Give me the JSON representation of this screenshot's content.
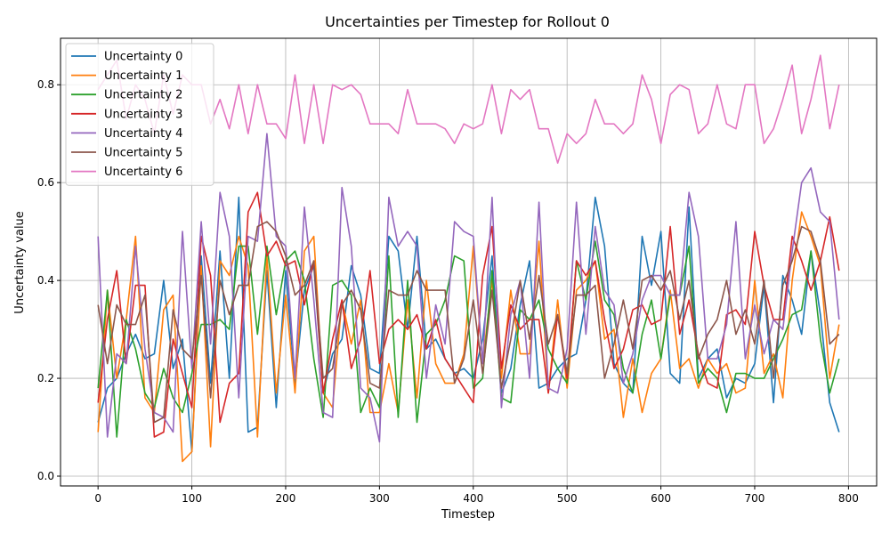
{
  "chart_data": {
    "type": "line",
    "title": "Uncertainties per Timestep for Rollout 0",
    "xlabel": "Timestep",
    "ylabel": "Uncertainty value",
    "xlim": [
      -40,
      830
    ],
    "ylim": [
      -0.02,
      0.895
    ],
    "xticks": [
      0,
      100,
      200,
      300,
      400,
      500,
      600,
      700,
      800
    ],
    "yticks": [
      0.0,
      0.2,
      0.4,
      0.6,
      0.8
    ],
    "xtick_labels": [
      "0",
      "100",
      "200",
      "300",
      "400",
      "500",
      "600",
      "700",
      "800"
    ],
    "ytick_labels": [
      "0.0",
      "0.2",
      "0.4",
      "0.6",
      "0.8"
    ],
    "grid": true,
    "legend_position": "top-left",
    "x": [
      0,
      10,
      20,
      30,
      40,
      50,
      60,
      70,
      80,
      90,
      100,
      110,
      120,
      130,
      140,
      150,
      160,
      170,
      180,
      190,
      200,
      210,
      220,
      230,
      240,
      250,
      260,
      270,
      280,
      290,
      300,
      310,
      320,
      330,
      340,
      350,
      360,
      370,
      380,
      390,
      400,
      410,
      420,
      430,
      440,
      450,
      460,
      470,
      480,
      490,
      500,
      510,
      520,
      530,
      540,
      550,
      560,
      570,
      580,
      590,
      600,
      610,
      620,
      630,
      640,
      650,
      660,
      670,
      680,
      690,
      700,
      710,
      720,
      730,
      740,
      750,
      760,
      770,
      780,
      790
    ],
    "series": [
      {
        "name": "Uncertainty 0",
        "color": "#1f77b4",
        "values": [
          0.11,
          0.18,
          0.2,
          0.25,
          0.29,
          0.24,
          0.25,
          0.4,
          0.22,
          0.28,
          0.05,
          0.45,
          0.19,
          0.46,
          0.2,
          0.57,
          0.09,
          0.1,
          0.42,
          0.14,
          0.42,
          0.19,
          0.38,
          0.43,
          0.17,
          0.25,
          0.28,
          0.43,
          0.37,
          0.22,
          0.21,
          0.49,
          0.46,
          0.3,
          0.49,
          0.26,
          0.28,
          0.24,
          0.21,
          0.22,
          0.2,
          0.28,
          0.45,
          0.17,
          0.22,
          0.35,
          0.44,
          0.18,
          0.19,
          0.22,
          0.24,
          0.25,
          0.36,
          0.57,
          0.47,
          0.23,
          0.19,
          0.17,
          0.49,
          0.39,
          0.5,
          0.21,
          0.19,
          0.55,
          0.2,
          0.24,
          0.26,
          0.16,
          0.2,
          0.19,
          0.23,
          0.39,
          0.15,
          0.41,
          0.36,
          0.29,
          0.46,
          0.33,
          0.15,
          0.09
        ]
      },
      {
        "name": "Uncertainty 1",
        "color": "#ff7f0e",
        "values": [
          0.09,
          0.38,
          0.2,
          0.32,
          0.49,
          0.16,
          0.13,
          0.34,
          0.37,
          0.03,
          0.05,
          0.43,
          0.06,
          0.44,
          0.41,
          0.49,
          0.43,
          0.08,
          0.45,
          0.17,
          0.37,
          0.17,
          0.46,
          0.49,
          0.17,
          0.14,
          0.36,
          0.27,
          0.36,
          0.13,
          0.13,
          0.23,
          0.13,
          0.36,
          0.16,
          0.4,
          0.23,
          0.19,
          0.19,
          0.25,
          0.47,
          0.23,
          0.4,
          0.2,
          0.38,
          0.25,
          0.25,
          0.48,
          0.17,
          0.36,
          0.18,
          0.38,
          0.4,
          0.44,
          0.28,
          0.3,
          0.12,
          0.24,
          0.13,
          0.21,
          0.24,
          0.38,
          0.22,
          0.24,
          0.18,
          0.24,
          0.21,
          0.23,
          0.17,
          0.18,
          0.4,
          0.21,
          0.25,
          0.16,
          0.4,
          0.54,
          0.49,
          0.43,
          0.2,
          0.31
        ]
      },
      {
        "name": "Uncertainty 2",
        "color": "#2ca02c",
        "values": [
          0.18,
          0.38,
          0.08,
          0.32,
          0.26,
          0.17,
          0.14,
          0.22,
          0.16,
          0.13,
          0.21,
          0.31,
          0.31,
          0.32,
          0.3,
          0.47,
          0.47,
          0.29,
          0.47,
          0.33,
          0.44,
          0.46,
          0.4,
          0.24,
          0.12,
          0.39,
          0.4,
          0.37,
          0.13,
          0.18,
          0.14,
          0.45,
          0.12,
          0.4,
          0.11,
          0.29,
          0.31,
          0.36,
          0.45,
          0.44,
          0.18,
          0.2,
          0.42,
          0.16,
          0.15,
          0.34,
          0.32,
          0.36,
          0.26,
          0.22,
          0.19,
          0.44,
          0.36,
          0.48,
          0.36,
          0.33,
          0.22,
          0.17,
          0.29,
          0.36,
          0.24,
          0.37,
          0.37,
          0.47,
          0.19,
          0.22,
          0.2,
          0.13,
          0.21,
          0.21,
          0.2,
          0.2,
          0.24,
          0.28,
          0.33,
          0.34,
          0.46,
          0.28,
          0.17,
          0.24
        ]
      },
      {
        "name": "Uncertainty 3",
        "color": "#d62728",
        "values": [
          0.15,
          0.32,
          0.42,
          0.23,
          0.39,
          0.39,
          0.08,
          0.09,
          0.28,
          0.21,
          0.14,
          0.49,
          0.41,
          0.11,
          0.19,
          0.21,
          0.54,
          0.58,
          0.45,
          0.48,
          0.43,
          0.44,
          0.35,
          0.44,
          0.17,
          0.28,
          0.36,
          0.22,
          0.28,
          0.42,
          0.23,
          0.3,
          0.32,
          0.3,
          0.33,
          0.26,
          0.32,
          0.24,
          0.21,
          0.18,
          0.15,
          0.41,
          0.51,
          0.22,
          0.35,
          0.3,
          0.32,
          0.32,
          0.17,
          0.33,
          0.2,
          0.44,
          0.41,
          0.44,
          0.32,
          0.22,
          0.26,
          0.34,
          0.35,
          0.31,
          0.32,
          0.51,
          0.29,
          0.36,
          0.25,
          0.19,
          0.18,
          0.33,
          0.34,
          0.31,
          0.5,
          0.39,
          0.32,
          0.32,
          0.49,
          0.44,
          0.38,
          0.44,
          0.53,
          0.42
        ]
      },
      {
        "name": "Uncertainty 4",
        "color": "#9467bd",
        "values": [
          0.49,
          0.08,
          0.25,
          0.23,
          0.47,
          0.26,
          0.13,
          0.12,
          0.09,
          0.5,
          0.22,
          0.52,
          0.27,
          0.58,
          0.49,
          0.16,
          0.49,
          0.48,
          0.7,
          0.49,
          0.47,
          0.2,
          0.55,
          0.36,
          0.13,
          0.12,
          0.59,
          0.47,
          0.18,
          0.16,
          0.07,
          0.57,
          0.47,
          0.5,
          0.47,
          0.2,
          0.35,
          0.27,
          0.52,
          0.5,
          0.49,
          0.23,
          0.57,
          0.14,
          0.33,
          0.4,
          0.2,
          0.56,
          0.18,
          0.17,
          0.26,
          0.56,
          0.29,
          0.51,
          0.38,
          0.35,
          0.19,
          0.25,
          0.36,
          0.41,
          0.41,
          0.37,
          0.37,
          0.58,
          0.49,
          0.24,
          0.24,
          0.31,
          0.52,
          0.24,
          0.35,
          0.25,
          0.32,
          0.3,
          0.46,
          0.6,
          0.63,
          0.54,
          0.52,
          0.32
        ]
      },
      {
        "name": "Uncertainty 5",
        "color": "#8c564b",
        "values": [
          0.35,
          0.23,
          0.35,
          0.31,
          0.31,
          0.37,
          0.11,
          0.12,
          0.34,
          0.26,
          0.24,
          0.41,
          0.16,
          0.4,
          0.33,
          0.39,
          0.39,
          0.51,
          0.52,
          0.5,
          0.45,
          0.37,
          0.39,
          0.44,
          0.2,
          0.22,
          0.35,
          0.38,
          0.34,
          0.19,
          0.18,
          0.38,
          0.37,
          0.37,
          0.42,
          0.38,
          0.38,
          0.38,
          0.19,
          0.24,
          0.36,
          0.21,
          0.38,
          0.18,
          0.28,
          0.4,
          0.28,
          0.41,
          0.27,
          0.33,
          0.21,
          0.37,
          0.37,
          0.39,
          0.2,
          0.27,
          0.36,
          0.26,
          0.4,
          0.41,
          0.38,
          0.42,
          0.32,
          0.4,
          0.24,
          0.29,
          0.32,
          0.4,
          0.29,
          0.34,
          0.27,
          0.4,
          0.2,
          0.39,
          0.44,
          0.51,
          0.5,
          0.44,
          0.27,
          0.29
        ]
      },
      {
        "name": "Uncertainty 6",
        "color": "#e377c2",
        "values": [
          0.79,
          0.82,
          0.85,
          0.73,
          0.8,
          0.77,
          0.7,
          0.82,
          0.74,
          0.82,
          0.8,
          0.8,
          0.72,
          0.77,
          0.71,
          0.8,
          0.7,
          0.8,
          0.72,
          0.72,
          0.69,
          0.82,
          0.68,
          0.8,
          0.68,
          0.8,
          0.79,
          0.8,
          0.78,
          0.72,
          0.72,
          0.72,
          0.7,
          0.79,
          0.72,
          0.72,
          0.72,
          0.71,
          0.68,
          0.72,
          0.71,
          0.72,
          0.8,
          0.7,
          0.79,
          0.77,
          0.79,
          0.71,
          0.71,
          0.64,
          0.7,
          0.68,
          0.7,
          0.77,
          0.72,
          0.72,
          0.7,
          0.72,
          0.82,
          0.77,
          0.68,
          0.78,
          0.8,
          0.79,
          0.7,
          0.72,
          0.8,
          0.72,
          0.71,
          0.8,
          0.8,
          0.68,
          0.71,
          0.77,
          0.84,
          0.7,
          0.77,
          0.86,
          0.71,
          0.8
        ]
      }
    ]
  }
}
